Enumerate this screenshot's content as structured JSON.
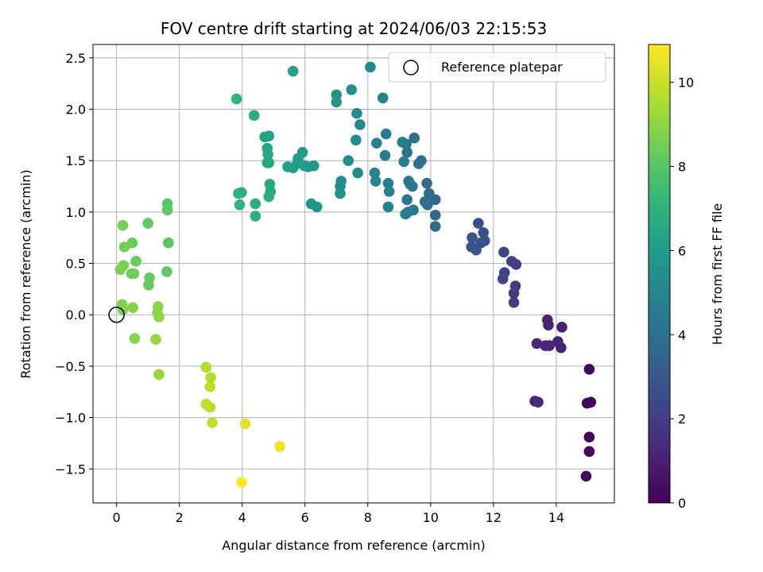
{
  "chart_data": {
    "type": "scatter",
    "title": "FOV centre drift starting at 2024/06/03 22:15:53",
    "xlabel": "Angular distance from reference (arcmin)",
    "ylabel": "Rotation from reference (arcmin)",
    "xlim": [
      -0.75,
      15.85
    ],
    "ylim": [
      -1.83,
      2.63
    ],
    "xticks": [
      0,
      2,
      4,
      6,
      8,
      10,
      12,
      14
    ],
    "yticks": [
      -1.5,
      -1.0,
      -0.5,
      0.0,
      0.5,
      1.0,
      1.5,
      2.0,
      2.5
    ],
    "grid": true,
    "legend": {
      "position": "top-right",
      "entries": [
        "Reference platepar"
      ]
    },
    "reference": {
      "name": "Reference platepar",
      "x": 0,
      "y": 0
    },
    "colorbar": {
      "label": "Hours from first FF file",
      "colormap": "viridis",
      "min": 0,
      "max": 10.9,
      "ticks": [
        0,
        2,
        4,
        6,
        8,
        10
      ]
    },
    "colormap_stops": [
      "#440154",
      "#482878",
      "#3e4989",
      "#31688e",
      "#26828e",
      "#1f9e89",
      "#35b779",
      "#6ece58",
      "#b5de2b",
      "#fde725"
    ],
    "points": [
      {
        "x": 14.95,
        "y": -1.57,
        "c": 0.05
      },
      {
        "x": 15.05,
        "y": -1.33,
        "c": 0.1
      },
      {
        "x": 15.05,
        "y": -1.19,
        "c": 0.15
      },
      {
        "x": 14.98,
        "y": -0.86,
        "c": 0.2
      },
      {
        "x": 15.1,
        "y": -0.85,
        "c": 0.25
      },
      {
        "x": 15.05,
        "y": -0.53,
        "c": 0.3
      },
      {
        "x": 14.18,
        "y": -0.12,
        "c": 1.0
      },
      {
        "x": 14.05,
        "y": -0.26,
        "c": 1.05
      },
      {
        "x": 14.15,
        "y": -0.32,
        "c": 1.1
      },
      {
        "x": 13.72,
        "y": -0.05,
        "c": 1.05
      },
      {
        "x": 13.75,
        "y": -0.1,
        "c": 1.1
      },
      {
        "x": 13.78,
        "y": -0.3,
        "c": 1.15
      },
      {
        "x": 13.65,
        "y": -0.3,
        "c": 1.2
      },
      {
        "x": 13.38,
        "y": -0.28,
        "c": 1.25
      },
      {
        "x": 13.32,
        "y": -0.84,
        "c": 1.3
      },
      {
        "x": 13.42,
        "y": -0.85,
        "c": 1.35
      },
      {
        "x": 12.7,
        "y": 0.28,
        "c": 1.9
      },
      {
        "x": 12.65,
        "y": 0.21,
        "c": 1.95
      },
      {
        "x": 12.65,
        "y": 0.12,
        "c": 2.0
      },
      {
        "x": 12.72,
        "y": 0.49,
        "c": 2.05
      },
      {
        "x": 12.58,
        "y": 0.52,
        "c": 2.1
      },
      {
        "x": 12.35,
        "y": 0.41,
        "c": 2.15
      },
      {
        "x": 12.3,
        "y": 0.35,
        "c": 2.2
      },
      {
        "x": 12.33,
        "y": 0.61,
        "c": 2.25
      },
      {
        "x": 11.52,
        "y": 0.89,
        "c": 2.6
      },
      {
        "x": 11.68,
        "y": 0.8,
        "c": 2.65
      },
      {
        "x": 11.72,
        "y": 0.72,
        "c": 2.7
      },
      {
        "x": 11.6,
        "y": 0.7,
        "c": 2.75
      },
      {
        "x": 11.32,
        "y": 0.75,
        "c": 2.8
      },
      {
        "x": 11.3,
        "y": 0.66,
        "c": 2.85
      },
      {
        "x": 11.45,
        "y": 0.63,
        "c": 2.9
      },
      {
        "x": 10.15,
        "y": 1.12,
        "c": 3.6
      },
      {
        "x": 10.15,
        "y": 0.97,
        "c": 3.65
      },
      {
        "x": 10.15,
        "y": 0.86,
        "c": 3.7
      },
      {
        "x": 9.88,
        "y": 1.28,
        "c": 3.75
      },
      {
        "x": 9.95,
        "y": 1.18,
        "c": 3.8
      },
      {
        "x": 9.9,
        "y": 1.07,
        "c": 3.85
      },
      {
        "x": 9.82,
        "y": 1.1,
        "c": 3.9
      },
      {
        "x": 9.7,
        "y": 1.5,
        "c": 3.95
      },
      {
        "x": 9.62,
        "y": 1.47,
        "c": 4.0
      },
      {
        "x": 9.48,
        "y": 1.72,
        "c": 4.05
      },
      {
        "x": 9.42,
        "y": 1.25,
        "c": 4.1
      },
      {
        "x": 9.25,
        "y": 1.58,
        "c": 4.15
      },
      {
        "x": 9.22,
        "y": 1.66,
        "c": 4.2
      },
      {
        "x": 9.3,
        "y": 1.3,
        "c": 4.25
      },
      {
        "x": 9.35,
        "y": 1.27,
        "c": 4.3
      },
      {
        "x": 9.25,
        "y": 1.12,
        "c": 4.35
      },
      {
        "x": 9.45,
        "y": 1.02,
        "c": 4.4
      },
      {
        "x": 9.28,
        "y": 1.0,
        "c": 4.45
      },
      {
        "x": 9.2,
        "y": 0.98,
        "c": 4.5
      },
      {
        "x": 9.15,
        "y": 1.49,
        "c": 4.55
      },
      {
        "x": 9.1,
        "y": 1.68,
        "c": 4.6
      },
      {
        "x": 8.58,
        "y": 1.76,
        "c": 4.65
      },
      {
        "x": 8.55,
        "y": 1.55,
        "c": 4.7
      },
      {
        "x": 8.65,
        "y": 1.28,
        "c": 4.75
      },
      {
        "x": 8.68,
        "y": 1.2,
        "c": 4.8
      },
      {
        "x": 8.65,
        "y": 1.05,
        "c": 4.85
      },
      {
        "x": 8.48,
        "y": 2.11,
        "c": 4.9
      },
      {
        "x": 8.28,
        "y": 1.67,
        "c": 4.95
      },
      {
        "x": 8.22,
        "y": 1.38,
        "c": 5.0
      },
      {
        "x": 8.25,
        "y": 1.3,
        "c": 5.05
      },
      {
        "x": 8.08,
        "y": 2.41,
        "c": 5.1
      },
      {
        "x": 7.75,
        "y": 1.85,
        "c": 5.15
      },
      {
        "x": 7.65,
        "y": 1.96,
        "c": 5.2
      },
      {
        "x": 7.62,
        "y": 1.7,
        "c": 5.25
      },
      {
        "x": 7.68,
        "y": 1.38,
        "c": 5.3
      },
      {
        "x": 7.48,
        "y": 2.19,
        "c": 5.35
      },
      {
        "x": 7.38,
        "y": 1.5,
        "c": 5.4
      },
      {
        "x": 7.15,
        "y": 1.3,
        "c": 5.45
      },
      {
        "x": 7.12,
        "y": 1.25,
        "c": 5.5
      },
      {
        "x": 7.12,
        "y": 1.18,
        "c": 5.55
      },
      {
        "x": 7.0,
        "y": 2.14,
        "c": 5.6
      },
      {
        "x": 7.0,
        "y": 2.07,
        "c": 5.65
      },
      {
        "x": 6.38,
        "y": 1.05,
        "c": 5.7
      },
      {
        "x": 6.2,
        "y": 1.08,
        "c": 5.75
      },
      {
        "x": 6.28,
        "y": 1.45,
        "c": 5.8
      },
      {
        "x": 6.1,
        "y": 1.44,
        "c": 5.85
      },
      {
        "x": 5.98,
        "y": 1.45,
        "c": 5.9
      },
      {
        "x": 5.92,
        "y": 1.58,
        "c": 5.95
      },
      {
        "x": 5.78,
        "y": 1.52,
        "c": 6.0
      },
      {
        "x": 5.75,
        "y": 1.47,
        "c": 6.05
      },
      {
        "x": 5.62,
        "y": 1.43,
        "c": 6.1
      },
      {
        "x": 5.45,
        "y": 1.44,
        "c": 6.15
      },
      {
        "x": 5.62,
        "y": 2.37,
        "c": 6.2
      },
      {
        "x": 4.85,
        "y": 1.74,
        "c": 6.3
      },
      {
        "x": 4.72,
        "y": 1.73,
        "c": 6.35
      },
      {
        "x": 4.8,
        "y": 1.62,
        "c": 6.4
      },
      {
        "x": 4.82,
        "y": 1.56,
        "c": 6.45
      },
      {
        "x": 4.8,
        "y": 1.48,
        "c": 6.5
      },
      {
        "x": 4.85,
        "y": 1.48,
        "c": 6.55
      },
      {
        "x": 4.88,
        "y": 1.27,
        "c": 6.6
      },
      {
        "x": 4.9,
        "y": 1.2,
        "c": 6.65
      },
      {
        "x": 4.85,
        "y": 1.15,
        "c": 6.7
      },
      {
        "x": 4.38,
        "y": 1.94,
        "c": 6.75
      },
      {
        "x": 4.42,
        "y": 1.08,
        "c": 6.8
      },
      {
        "x": 4.42,
        "y": 0.96,
        "c": 6.85
      },
      {
        "x": 3.98,
        "y": 1.19,
        "c": 6.9
      },
      {
        "x": 3.88,
        "y": 1.18,
        "c": 6.95
      },
      {
        "x": 3.92,
        "y": 1.07,
        "c": 7.0
      },
      {
        "x": 3.82,
        "y": 2.1,
        "c": 7.05
      },
      {
        "x": 1.62,
        "y": 1.08,
        "c": 8.0
      },
      {
        "x": 1.62,
        "y": 1.02,
        "c": 8.05
      },
      {
        "x": 1.65,
        "y": 0.7,
        "c": 8.1
      },
      {
        "x": 1.6,
        "y": 0.42,
        "c": 8.15
      },
      {
        "x": 1.0,
        "y": 0.89,
        "c": 8.2
      },
      {
        "x": 1.05,
        "y": 0.36,
        "c": 8.25
      },
      {
        "x": 1.02,
        "y": 0.29,
        "c": 8.3
      },
      {
        "x": 0.62,
        "y": 0.52,
        "c": 8.35
      },
      {
        "x": 0.5,
        "y": 0.7,
        "c": 8.4
      },
      {
        "x": 0.55,
        "y": 0.4,
        "c": 8.45
      },
      {
        "x": 0.48,
        "y": 0.4,
        "c": 8.5
      },
      {
        "x": 0.25,
        "y": 0.66,
        "c": 8.55
      },
      {
        "x": 0.2,
        "y": 0.87,
        "c": 8.6
      },
      {
        "x": 0.22,
        "y": 0.48,
        "c": 8.65
      },
      {
        "x": 0.12,
        "y": 0.44,
        "c": 8.7
      },
      {
        "x": 0.18,
        "y": 0.1,
        "c": 8.75
      },
      {
        "x": 0.2,
        "y": 0.05,
        "c": 8.8
      },
      {
        "x": 0.52,
        "y": 0.07,
        "c": 8.85
      },
      {
        "x": 0.58,
        "y": -0.23,
        "c": 8.9
      },
      {
        "x": 1.32,
        "y": 0.08,
        "c": 8.95
      },
      {
        "x": 1.3,
        "y": 0.02,
        "c": 9.0
      },
      {
        "x": 1.35,
        "y": -0.02,
        "c": 9.05
      },
      {
        "x": 1.25,
        "y": -0.24,
        "c": 9.1
      },
      {
        "x": 1.35,
        "y": -0.58,
        "c": 9.2
      },
      {
        "x": 2.85,
        "y": -0.51,
        "c": 9.6
      },
      {
        "x": 3.0,
        "y": -0.61,
        "c": 9.65
      },
      {
        "x": 2.98,
        "y": -0.7,
        "c": 9.7
      },
      {
        "x": 2.85,
        "y": -0.87,
        "c": 9.75
      },
      {
        "x": 2.98,
        "y": -0.9,
        "c": 9.8
      },
      {
        "x": 3.05,
        "y": -1.05,
        "c": 9.85
      },
      {
        "x": 4.1,
        "y": -1.06,
        "c": 10.4
      },
      {
        "x": 5.2,
        "y": -1.28,
        "c": 10.6
      },
      {
        "x": 3.98,
        "y": -1.63,
        "c": 10.9
      }
    ]
  }
}
